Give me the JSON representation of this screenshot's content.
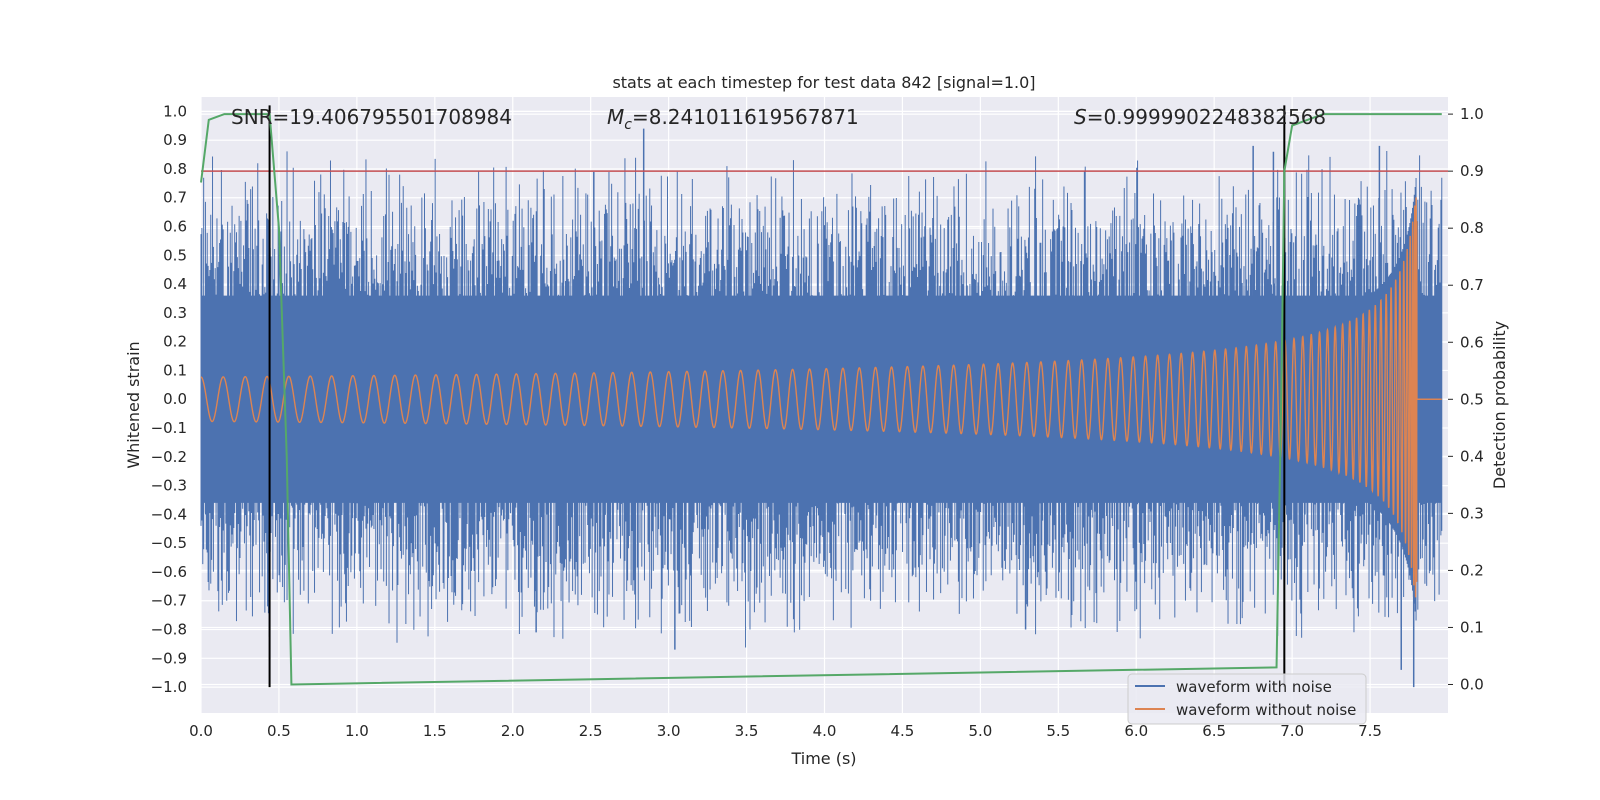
{
  "chart_data": {
    "type": "line",
    "title": "stats at each timestep for test data 842 [signal=1.0]",
    "xlabel": "Time (s)",
    "ylabel": "Whitened strain",
    "y2label": "Detection probability",
    "xlim": [
      0.0,
      8.0
    ],
    "ylim": [
      -1.09,
      1.05
    ],
    "y2lim": [
      -0.05,
      1.03
    ],
    "xticks": [
      "0.0",
      "0.5",
      "1.0",
      "1.5",
      "2.0",
      "2.5",
      "3.0",
      "3.5",
      "4.0",
      "4.5",
      "5.0",
      "5.5",
      "6.0",
      "6.5",
      "7.0",
      "7.5"
    ],
    "yticks": [
      "1.0",
      "0.9",
      "0.8",
      "0.7",
      "0.6",
      "0.5",
      "0.4",
      "0.3",
      "0.2",
      "0.1",
      "0.0",
      "-0.1",
      "-0.2",
      "-0.3",
      "-0.4",
      "-0.5",
      "-0.6",
      "-0.7",
      "-0.8",
      "-0.9",
      "-1.0"
    ],
    "y2ticks": [
      "1.0",
      "0.9",
      "0.8",
      "0.7",
      "0.6",
      "0.5",
      "0.4",
      "0.3",
      "0.2",
      "0.1",
      "0.0"
    ],
    "annotations": {
      "snr": "SNR=19.406795501708984",
      "mc_symbol": "M",
      "mc_sub": "c",
      "mc_value": "=8.241011619567871",
      "s_symbol": "S",
      "s_value": "=0.9999902248382568"
    },
    "legend": {
      "placement": "lower-right",
      "entries": [
        "waveform with noise",
        "waveform without noise"
      ]
    },
    "threshold": 0.9,
    "vlines": [
      0.44,
      6.95
    ],
    "noise_envelope_base": 0.36,
    "notable_noise_peaks": [
      {
        "x": 2.84,
        "y": 0.94
      },
      {
        "x": 2.52,
        "y": 0.79
      },
      {
        "x": 6.75,
        "y": 0.88
      },
      {
        "x": 6.88,
        "y": 0.86
      },
      {
        "x": 7.56,
        "y": 0.88
      },
      {
        "x": 7.7,
        "y": -0.94
      },
      {
        "x": 7.78,
        "y": -1.0
      },
      {
        "x": 3.04,
        "y": -0.87
      },
      {
        "x": 2.15,
        "y": -0.81
      },
      {
        "x": 5.29,
        "y": -0.8
      }
    ],
    "signal_amplitude_end": 0.75,
    "merger_time": 7.8,
    "detection_probability": {
      "x": [
        0.0,
        0.05,
        0.1,
        0.15,
        0.2,
        0.3,
        0.44,
        0.5,
        0.55,
        0.58,
        6.9,
        6.93,
        6.95,
        7.0,
        7.2,
        7.3,
        7.5,
        7.96
      ],
      "y": [
        0.88,
        0.99,
        0.995,
        1.0,
        1.0,
        1.0,
        1.0,
        0.8,
        0.4,
        0.0,
        0.03,
        0.5,
        0.9,
        0.98,
        1.0,
        1.0,
        1.0,
        1.0
      ]
    },
    "colors": {
      "background": "#eaeaf2",
      "grid": "#ffffff",
      "noise": "#4c72b0",
      "signal": "#dd8452",
      "probability": "#55a868",
      "threshold": "#c44e52",
      "vline": "#000000",
      "text": "#262626"
    }
  }
}
